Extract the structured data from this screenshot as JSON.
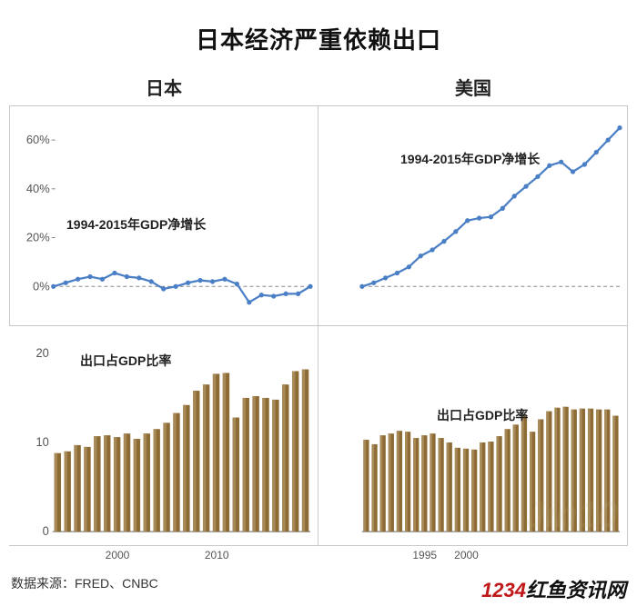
{
  "title": "日本经济严重依赖出口",
  "source_label": "数据来源：FRED、CNBC",
  "watermark_num": "1234",
  "watermark_text": "红鱼资讯网",
  "columns": [
    {
      "title": "日本"
    },
    {
      "title": "美国"
    }
  ],
  "line_label": "1994-2015年GDP净增长",
  "bar_label": "出口占GDP比率",
  "line_chart": {
    "type": "line",
    "ylim": [
      -10,
      70
    ],
    "yticks": [
      0,
      20,
      40,
      60
    ],
    "ytick_labels": [
      "0%",
      "20%",
      "40%",
      "60%"
    ],
    "xlim": [
      1994,
      2015
    ],
    "xticks_japan": [
      2000,
      2010
    ],
    "xticks_us": [
      1995,
      2000
    ],
    "line_color": "#4a7fc6",
    "line_width": 2.2,
    "marker_radius": 2.6,
    "marker_color": "#4a7fc6",
    "zero_line_color": "#888888",
    "grid": false
  },
  "bar_chart": {
    "type": "bar",
    "ylim": [
      0,
      22
    ],
    "yticks": [
      0,
      10,
      20
    ],
    "ytick_labels": [
      "0",
      "10",
      "20"
    ],
    "xlim": [
      1994,
      2015
    ],
    "bar_color": "#8c6b35",
    "bar_color_light": "#a88a58",
    "bar_width": 0.68
  },
  "japan_gdp": [
    0.0,
    1.5,
    3.0,
    4.0,
    3.0,
    5.5,
    4.0,
    3.5,
    2.0,
    -1.0,
    0.0,
    1.5,
    2.5,
    2.0,
    3.0,
    1.0,
    -6.5,
    -3.5,
    -4.0,
    -3.0,
    -3.0,
    0.0
  ],
  "us_gdp": [
    0.0,
    1.5,
    3.5,
    5.5,
    8.0,
    12.5,
    15.0,
    18.5,
    22.5,
    27.0,
    28.0,
    28.5,
    32.0,
    37.0,
    41.0,
    45.0,
    49.5,
    51.0,
    47.0,
    50.0,
    55.0,
    60.0,
    65.0
  ],
  "japan_exports": [
    8.8,
    9.0,
    9.7,
    9.5,
    10.7,
    10.8,
    10.6,
    11.0,
    10.4,
    11.0,
    11.5,
    12.2,
    13.3,
    14.2,
    15.8,
    16.5,
    17.7,
    17.8,
    12.8,
    15.0,
    15.2,
    15.0,
    14.8,
    16.5,
    18.0,
    18.2
  ],
  "us_exports": [
    10.3,
    9.8,
    10.8,
    11.0,
    11.3,
    11.2,
    10.5,
    10.8,
    11.0,
    10.5,
    10.0,
    9.4,
    9.3,
    9.2,
    10.0,
    10.1,
    10.7,
    11.5,
    12.0,
    13.0,
    11.2,
    12.6,
    13.5,
    13.9,
    14.0,
    13.7,
    13.8,
    13.8,
    13.7,
    13.7,
    13.0
  ],
  "colors": {
    "background": "#ffffff",
    "border": "#c8c8c8",
    "text": "#222222"
  },
  "fonts": {
    "title_size": 26,
    "col_title_size": 20,
    "label_size": 14,
    "axis_size": 13
  }
}
